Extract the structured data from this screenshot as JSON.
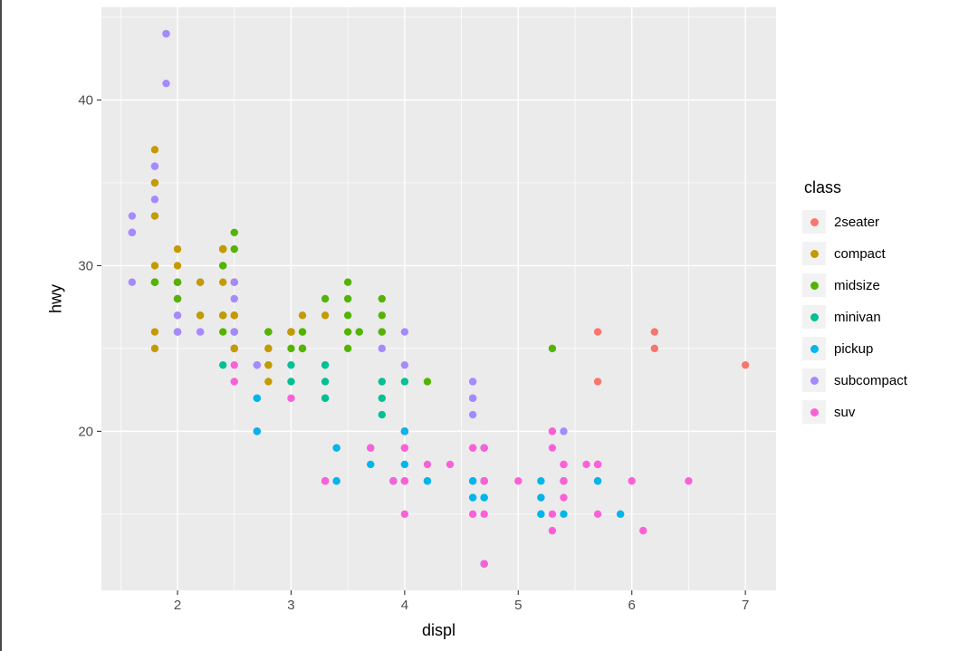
{
  "figure": {
    "background": "#FFFFFF",
    "panel_background": "#EBEBEB",
    "grid_color": "#FFFFFF",
    "tick_color": "#333333",
    "tick_label_color": "#4D4D4D",
    "legend_key_background": "#F2F2F2"
  },
  "chart_data": {
    "type": "scatter",
    "xlabel": "displ",
    "ylabel": "hwy",
    "legend_title": "class",
    "legend_position": "right",
    "grid": true,
    "xlim": [
      1.33,
      7.27
    ],
    "ylim": [
      10.4,
      45.6
    ],
    "x_ticks": [
      2,
      3,
      4,
      5,
      6,
      7
    ],
    "y_ticks": [
      20,
      30,
      40
    ],
    "x_minor_ticks": [
      1.5,
      2.5,
      3.5,
      4.5,
      5.5,
      6.5
    ],
    "y_minor_ticks": [
      15,
      25,
      35,
      45
    ],
    "classes": [
      {
        "label": "2seater",
        "color": "#F8766D"
      },
      {
        "label": "compact",
        "color": "#C49A00"
      },
      {
        "label": "midsize",
        "color": "#53B400"
      },
      {
        "label": "minivan",
        "color": "#00C094"
      },
      {
        "label": "pickup",
        "color": "#00B6EB"
      },
      {
        "label": "subcompact",
        "color": "#A58AFF"
      },
      {
        "label": "suv",
        "color": "#FB61D7"
      }
    ],
    "points": [
      [
        1.8,
        29,
        1
      ],
      [
        1.8,
        29,
        1
      ],
      [
        2,
        31,
        1
      ],
      [
        2,
        30,
        1
      ],
      [
        2.8,
        26,
        1
      ],
      [
        2.8,
        26,
        1
      ],
      [
        3.1,
        27,
        1
      ],
      [
        1.8,
        26,
        1
      ],
      [
        1.8,
        25,
        1
      ],
      [
        2,
        28,
        1
      ],
      [
        2,
        27,
        1
      ],
      [
        2.8,
        25,
        1
      ],
      [
        2.8,
        25,
        1
      ],
      [
        3.1,
        25,
        1
      ],
      [
        3.1,
        25,
        1
      ],
      [
        2.8,
        24,
        2
      ],
      [
        3.1,
        25,
        2
      ],
      [
        4.2,
        23,
        2
      ],
      [
        5.3,
        20,
        6
      ],
      [
        5.3,
        15,
        6
      ],
      [
        5.3,
        20,
        6
      ],
      [
        5.7,
        17,
        6
      ],
      [
        6,
        17,
        6
      ],
      [
        5.7,
        26,
        0
      ],
      [
        5.7,
        23,
        0
      ],
      [
        6.2,
        26,
        0
      ],
      [
        6.2,
        25,
        0
      ],
      [
        7,
        24,
        0
      ],
      [
        5.3,
        14,
        6
      ],
      [
        5.3,
        19,
        6
      ],
      [
        5.7,
        15,
        6
      ],
      [
        6.5,
        17,
        6
      ],
      [
        2.4,
        27,
        2
      ],
      [
        2.4,
        30,
        2
      ],
      [
        3.1,
        26,
        2
      ],
      [
        3.5,
        29,
        2
      ],
      [
        3.6,
        26,
        2
      ],
      [
        2.4,
        24,
        3
      ],
      [
        3,
        24,
        3
      ],
      [
        3.3,
        22,
        3
      ],
      [
        3.3,
        22,
        3
      ],
      [
        3.3,
        24,
        3
      ],
      [
        3.3,
        24,
        3
      ],
      [
        3.3,
        17,
        3
      ],
      [
        3.8,
        22,
        3
      ],
      [
        3.8,
        21,
        3
      ],
      [
        3.8,
        23,
        3
      ],
      [
        4,
        23,
        3
      ],
      [
        3.7,
        19,
        4
      ],
      [
        3.7,
        18,
        4
      ],
      [
        3.9,
        17,
        4
      ],
      [
        3.9,
        17,
        4
      ],
      [
        4.7,
        19,
        4
      ],
      [
        4.7,
        19,
        4
      ],
      [
        4.7,
        12,
        4
      ],
      [
        5.2,
        17,
        4
      ],
      [
        5.2,
        15,
        4
      ],
      [
        3.9,
        17,
        6
      ],
      [
        4.7,
        17,
        6
      ],
      [
        4.7,
        12,
        6
      ],
      [
        4.7,
        17,
        6
      ],
      [
        5.2,
        16,
        6
      ],
      [
        5.7,
        18,
        6
      ],
      [
        5.9,
        15,
        6
      ],
      [
        4.7,
        16,
        4
      ],
      [
        4.7,
        12,
        4
      ],
      [
        4.7,
        17,
        4
      ],
      [
        4.7,
        17,
        4
      ],
      [
        4.7,
        16,
        4
      ],
      [
        5.2,
        15,
        4
      ],
      [
        5.2,
        16,
        4
      ],
      [
        5.7,
        17,
        4
      ],
      [
        5.9,
        15,
        4
      ],
      [
        4.6,
        17,
        6
      ],
      [
        5.4,
        17,
        6
      ],
      [
        5.4,
        18,
        6
      ],
      [
        4,
        17,
        6
      ],
      [
        4,
        19,
        6
      ],
      [
        4,
        17,
        6
      ],
      [
        4,
        19,
        6
      ],
      [
        4.6,
        19,
        6
      ],
      [
        4.2,
        17,
        4
      ],
      [
        4.2,
        17,
        4
      ],
      [
        4.6,
        16,
        4
      ],
      [
        4.6,
        16,
        4
      ],
      [
        4.6,
        17,
        4
      ],
      [
        5.4,
        15,
        4
      ],
      [
        5.4,
        17,
        4
      ],
      [
        3.8,
        26,
        5
      ],
      [
        3.8,
        25,
        5
      ],
      [
        4,
        26,
        5
      ],
      [
        4,
        24,
        5
      ],
      [
        4.6,
        21,
        5
      ],
      [
        4.6,
        22,
        5
      ],
      [
        4.6,
        23,
        5
      ],
      [
        4.6,
        22,
        5
      ],
      [
        5.4,
        20,
        5
      ],
      [
        1.6,
        33,
        5
      ],
      [
        1.6,
        32,
        5
      ],
      [
        1.6,
        32,
        5
      ],
      [
        1.6,
        29,
        5
      ],
      [
        1.6,
        32,
        5
      ],
      [
        1.8,
        34,
        5
      ],
      [
        1.8,
        36,
        5
      ],
      [
        1.8,
        36,
        5
      ],
      [
        2,
        29,
        5
      ],
      [
        2.4,
        26,
        2
      ],
      [
        2.4,
        27,
        2
      ],
      [
        2.4,
        30,
        2
      ],
      [
        2.4,
        31,
        2
      ],
      [
        2.5,
        26,
        2
      ],
      [
        2.5,
        26,
        2
      ],
      [
        3.3,
        28,
        2
      ],
      [
        2,
        26,
        5
      ],
      [
        2,
        29,
        5
      ],
      [
        2,
        28,
        5
      ],
      [
        2,
        27,
        5
      ],
      [
        2.7,
        24,
        5
      ],
      [
        2.7,
        24,
        5
      ],
      [
        2.7,
        24,
        5
      ],
      [
        3,
        22,
        6
      ],
      [
        3.7,
        19,
        6
      ],
      [
        4,
        20,
        6
      ],
      [
        4.7,
        17,
        6
      ],
      [
        4.7,
        12,
        6
      ],
      [
        4.7,
        19,
        6
      ],
      [
        5.7,
        18,
        6
      ],
      [
        6.1,
        14,
        6
      ],
      [
        4,
        15,
        6
      ],
      [
        4.2,
        18,
        6
      ],
      [
        4.4,
        18,
        6
      ],
      [
        4.6,
        15,
        6
      ],
      [
        5.4,
        17,
        6
      ],
      [
        5.4,
        16,
        6
      ],
      [
        5.4,
        18,
        6
      ],
      [
        4,
        17,
        6
      ],
      [
        4,
        19,
        6
      ],
      [
        4.6,
        19,
        6
      ],
      [
        5,
        17,
        6
      ],
      [
        2.4,
        29,
        1
      ],
      [
        2.4,
        27,
        1
      ],
      [
        2.5,
        31,
        2
      ],
      [
        2.5,
        32,
        2
      ],
      [
        3.5,
        27,
        2
      ],
      [
        3.5,
        26,
        2
      ],
      [
        3,
        26,
        2
      ],
      [
        3,
        25,
        2
      ],
      [
        3.5,
        25,
        2
      ],
      [
        3.3,
        17,
        6
      ],
      [
        3.3,
        17,
        6
      ],
      [
        4,
        20,
        6
      ],
      [
        5.6,
        18,
        6
      ],
      [
        3.1,
        26,
        2
      ],
      [
        3.8,
        26,
        2
      ],
      [
        3.8,
        27,
        2
      ],
      [
        3.8,
        28,
        2
      ],
      [
        5.3,
        25,
        2
      ],
      [
        2.5,
        25,
        6
      ],
      [
        2.5,
        24,
        6
      ],
      [
        2.5,
        27,
        6
      ],
      [
        2.5,
        25,
        6
      ],
      [
        2.5,
        26,
        6
      ],
      [
        2.5,
        23,
        6
      ],
      [
        2.2,
        26,
        5
      ],
      [
        2.2,
        26,
        5
      ],
      [
        2.5,
        26,
        5
      ],
      [
        2.5,
        26,
        5
      ],
      [
        2.5,
        25,
        1
      ],
      [
        2.5,
        27,
        1
      ],
      [
        2.5,
        25,
        1
      ],
      [
        2.5,
        27,
        1
      ],
      [
        2.7,
        20,
        6
      ],
      [
        2.7,
        20,
        6
      ],
      [
        3.4,
        19,
        6
      ],
      [
        3.4,
        17,
        6
      ],
      [
        4,
        20,
        6
      ],
      [
        4.7,
        17,
        6
      ],
      [
        2.2,
        29,
        2
      ],
      [
        2.2,
        27,
        2
      ],
      [
        2.4,
        31,
        2
      ],
      [
        2.4,
        31,
        2
      ],
      [
        3,
        26,
        2
      ],
      [
        3,
        26,
        2
      ],
      [
        3.5,
        28,
        2
      ],
      [
        2.2,
        27,
        1
      ],
      [
        2.2,
        29,
        1
      ],
      [
        2.4,
        31,
        1
      ],
      [
        2.4,
        31,
        1
      ],
      [
        3,
        26,
        1
      ],
      [
        3.3,
        27,
        1
      ],
      [
        1.8,
        30,
        1
      ],
      [
        1.8,
        33,
        1
      ],
      [
        1.8,
        35,
        1
      ],
      [
        1.8,
        37,
        1
      ],
      [
        1.8,
        35,
        1
      ],
      [
        4.7,
        15,
        6
      ],
      [
        5.7,
        18,
        6
      ],
      [
        3,
        23,
        3
      ],
      [
        3.3,
        23,
        3
      ],
      [
        2.7,
        22,
        4
      ],
      [
        2.7,
        20,
        4
      ],
      [
        2.7,
        22,
        4
      ],
      [
        3.4,
        17,
        4
      ],
      [
        3.4,
        19,
        4
      ],
      [
        4,
        18,
        4
      ],
      [
        4,
        20,
        4
      ],
      [
        2,
        29,
        1
      ],
      [
        2,
        26,
        1
      ],
      [
        2,
        29,
        1
      ],
      [
        2,
        29,
        1
      ],
      [
        2.8,
        24,
        1
      ],
      [
        1.9,
        44,
        1
      ],
      [
        2,
        29,
        1
      ],
      [
        2,
        26,
        1
      ],
      [
        2,
        29,
        1
      ],
      [
        2,
        29,
        1
      ],
      [
        2.5,
        29,
        1
      ],
      [
        2.5,
        29,
        1
      ],
      [
        2.8,
        23,
        1
      ],
      [
        2.8,
        24,
        1
      ],
      [
        1.9,
        44,
        5
      ],
      [
        1.9,
        41,
        5
      ],
      [
        2,
        29,
        5
      ],
      [
        2,
        26,
        5
      ],
      [
        2.5,
        28,
        5
      ],
      [
        2.5,
        29,
        5
      ],
      [
        1.8,
        29,
        2
      ],
      [
        1.8,
        29,
        2
      ],
      [
        2,
        28,
        2
      ],
      [
        2,
        29,
        2
      ],
      [
        2.8,
        26,
        2
      ],
      [
        2.8,
        26,
        2
      ],
      [
        3.6,
        26,
        2
      ]
    ]
  }
}
